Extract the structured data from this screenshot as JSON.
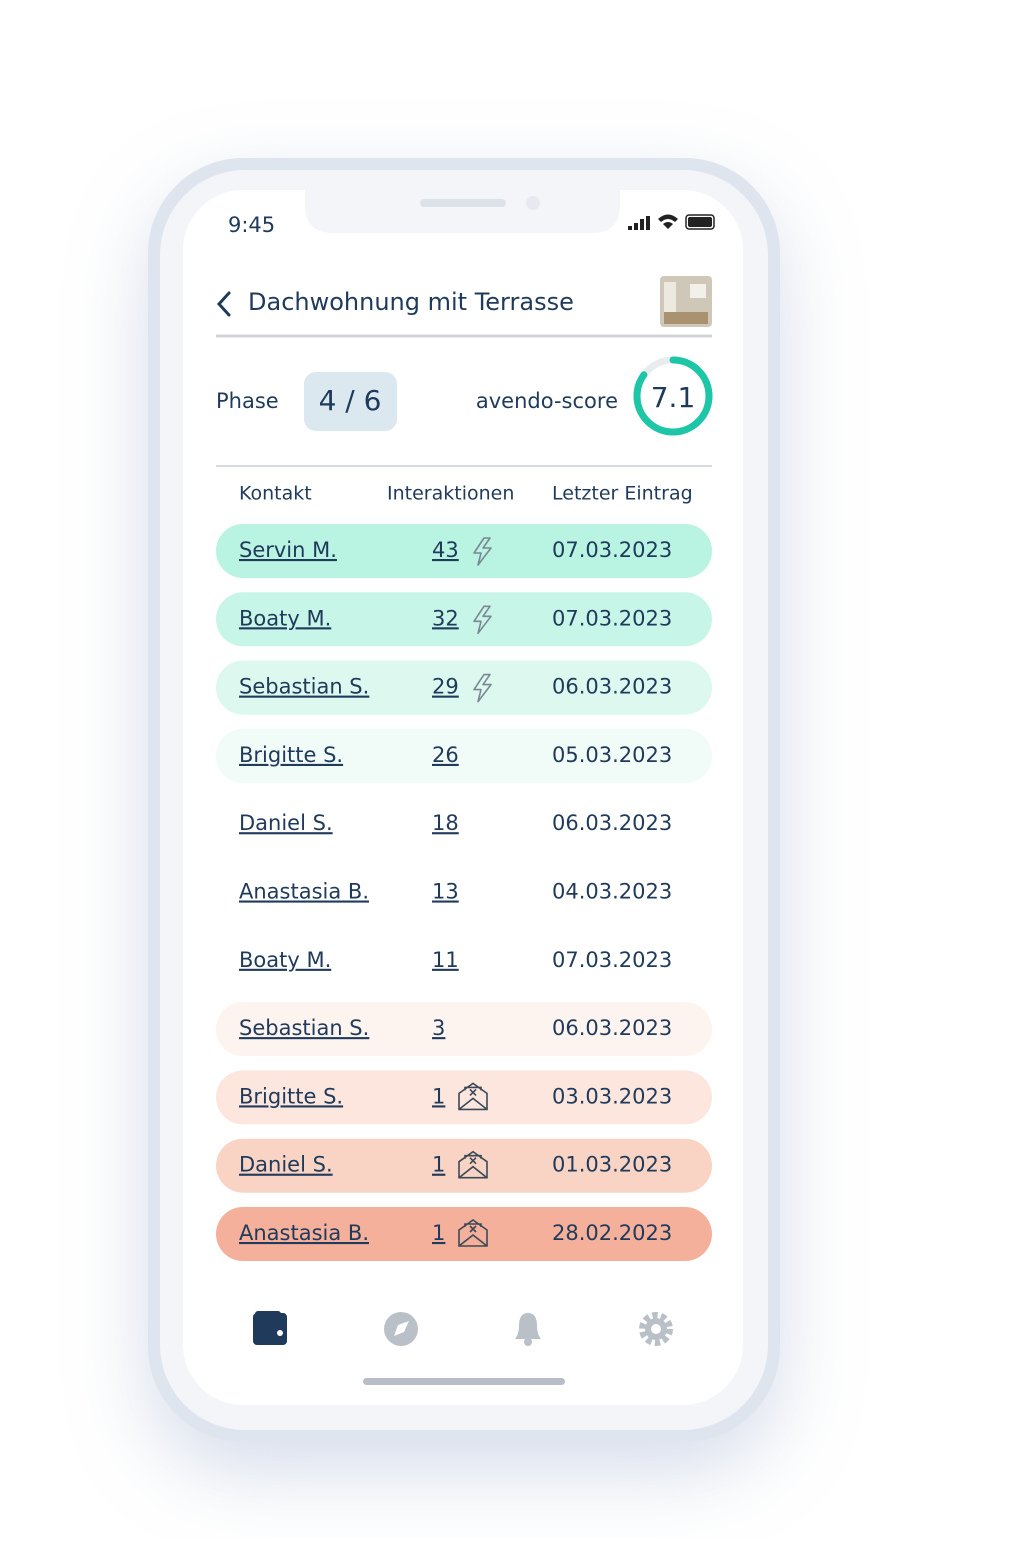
{
  "status": {
    "time": "9:45"
  },
  "header": {
    "title": "Dachwohnung mit Terrasse"
  },
  "phase": {
    "label": "Phase",
    "value": "4 / 6"
  },
  "score": {
    "label": "avendo-score",
    "value": "7.1"
  },
  "table": {
    "columns": [
      "Kontakt",
      "Interaktionen",
      "Letzter Eintrag"
    ],
    "rows": [
      [
        "Servin M.",
        "43",
        "07.03.2023"
      ],
      [
        "Boaty M.",
        "32",
        "07.03.2023"
      ],
      [
        "Sebastian S.",
        "29",
        "06.03.2023"
      ],
      [
        "Brigitte S.",
        "26",
        "05.03.2023"
      ],
      [
        "Daniel S.",
        "18",
        "06.03.2023"
      ],
      [
        "Anastasia B.",
        "13",
        "04.03.2023"
      ],
      [
        "Boaty M.",
        "11",
        "07.03.2023"
      ],
      [
        "Sebastian S.",
        "3",
        "06.03.2023"
      ],
      [
        "Brigitte S.",
        "1",
        "03.03.2023"
      ],
      [
        "Daniel S.",
        "1",
        "01.03.2023"
      ],
      [
        "Anastasia B.",
        "1",
        "28.02.2023"
      ]
    ]
  }
}
